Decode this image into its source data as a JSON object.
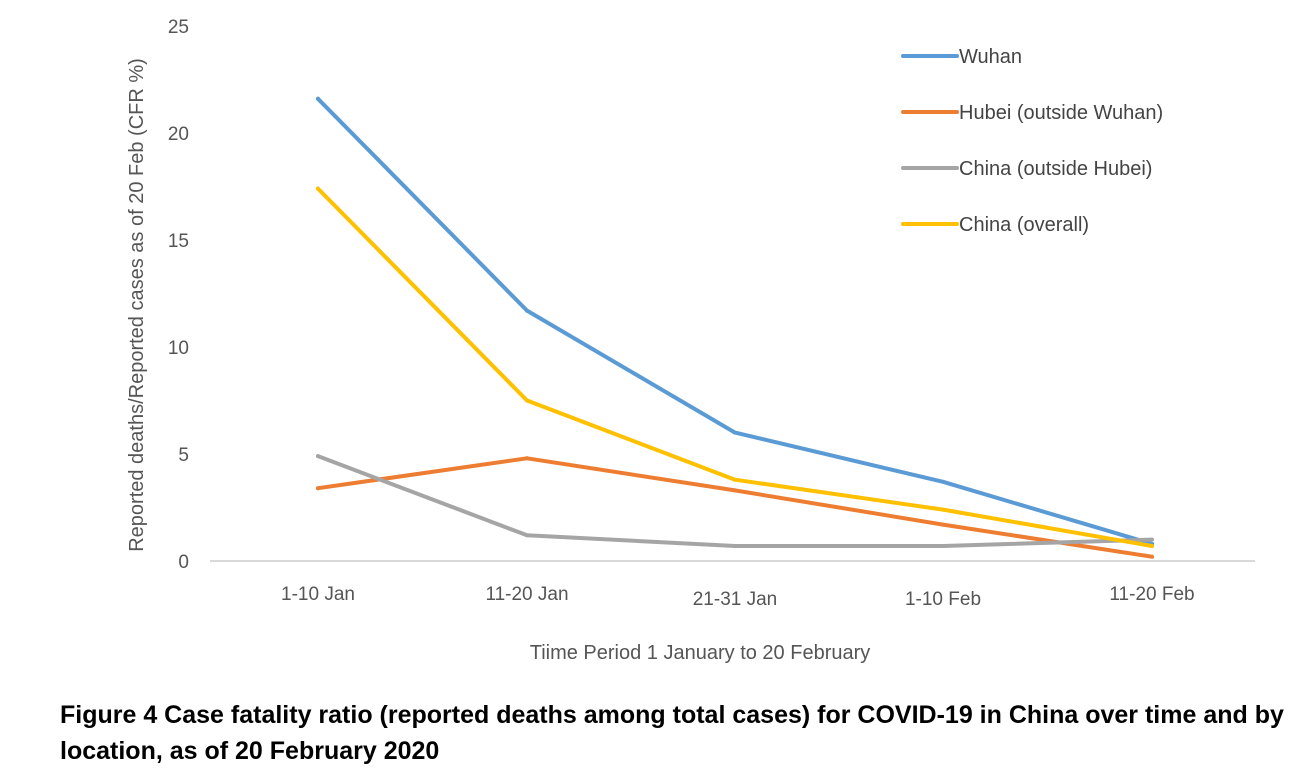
{
  "chart_data": {
    "type": "line",
    "categories": [
      "1-10 Jan",
      "11-20 Jan",
      "21-31 Jan",
      "1-10 Feb",
      "11-20 Feb"
    ],
    "series": [
      {
        "name": "Wuhan",
        "color": "#5b9bd5",
        "values": [
          21.6,
          11.7,
          6.0,
          3.7,
          0.8
        ]
      },
      {
        "name": "Hubei (outside Wuhan)",
        "color": "#ed7d31",
        "values": [
          3.4,
          4.8,
          3.3,
          1.7,
          0.2
        ]
      },
      {
        "name": "China (outside Hubei)",
        "color": "#a5a5a5",
        "values": [
          4.9,
          1.2,
          0.7,
          0.7,
          1.0
        ]
      },
      {
        "name": "China (overall)",
        "color": "#ffc000",
        "values": [
          17.4,
          7.5,
          3.8,
          2.4,
          0.7
        ]
      }
    ],
    "yticks": [
      "0",
      "5",
      "10",
      "15",
      "20",
      "25"
    ],
    "ylim": [
      0,
      25
    ],
    "ylabel": "Reported  deaths/Reported  cases as of 20 Feb (CFR %)",
    "xlabel": "Tiime Period 1 January to 20 February",
    "legend_position": "top-right"
  },
  "caption": "Figure 4 Case fatality ratio (reported deaths among total cases) for COVID-19 in China over time and by location, as of 20 February 2020"
}
